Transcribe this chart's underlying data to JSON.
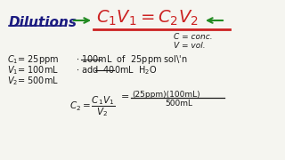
{
  "bg_color": "#f5f5f0",
  "title": "Dilutions",
  "formula": "C₁V₁ = C₂V₂",
  "legend_c": "C = conc.",
  "legend_v": "V = vol.",
  "line1": "C₁ = 25ppm",
  "line1b": "· 100mL  of  25ppm sol’n",
  "line2": "V₁ = 100mL",
  "line2b": "· add  400mL  H₂O",
  "line3": "V₂ = 500mL",
  "calc_label": "C₂ =",
  "calc_num": "(25ppm)(100mL)",
  "calc_den": "500mL",
  "calc_frac": "C₁V₁ / V₂",
  "title_color": "#1a1a80",
  "formula_color": "#cc2222",
  "arrow_color": "#228B22",
  "text_color": "#1a1a1a",
  "underline_color": "#cc2222"
}
